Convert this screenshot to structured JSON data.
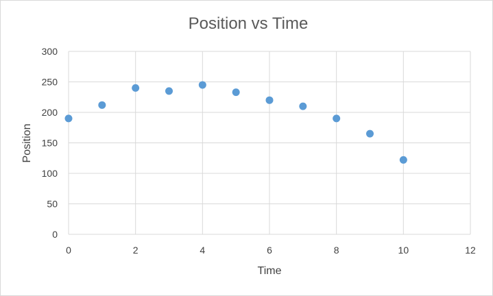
{
  "chart_data": {
    "type": "scatter",
    "title": "Position vs Time",
    "xlabel": "Time",
    "ylabel": "Position",
    "xlim": [
      0,
      12
    ],
    "ylim": [
      0,
      300
    ],
    "x_ticks": [
      0,
      2,
      4,
      6,
      8,
      10,
      12
    ],
    "y_ticks": [
      0,
      50,
      100,
      150,
      200,
      250,
      300
    ],
    "grid": true,
    "legend": "none",
    "marker_color": "#5b9bd5",
    "series": [
      {
        "x": [
          0,
          1,
          2,
          3,
          4,
          5,
          6,
          7,
          8,
          9,
          10
        ],
        "y": [
          190,
          212,
          240,
          235,
          245,
          233,
          220,
          210,
          190,
          165,
          122
        ]
      }
    ]
  }
}
